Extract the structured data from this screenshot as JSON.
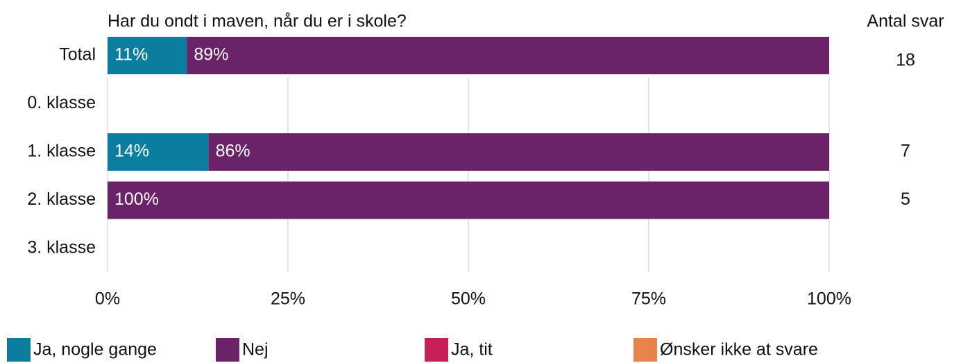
{
  "chart_data": {
    "type": "stacked-bar-horizontal",
    "title": "Har du ondt i maven, når du er i skole?",
    "categories": [
      "Total",
      "0. klasse",
      "1. klasse",
      "2. klasse",
      "3. klasse"
    ],
    "series": [
      {
        "name": "Ja, nogle gange",
        "color": "#0b7ea0",
        "values": [
          11,
          null,
          14,
          null,
          null
        ],
        "value_labels": [
          "11%",
          null,
          "14%",
          null,
          null
        ]
      },
      {
        "name": "Nej",
        "color": "#6a2268",
        "values": [
          89,
          null,
          86,
          100,
          null
        ],
        "value_labels": [
          "89%",
          null,
          "86%",
          "100%",
          null
        ]
      },
      {
        "name": "Ja, tit",
        "color": "#c81e5a",
        "values": [
          null,
          null,
          null,
          null,
          null
        ]
      },
      {
        "name": "Ønsker ikke at svare",
        "color": "#e8834a",
        "values": [
          null,
          null,
          null,
          null,
          null
        ]
      }
    ],
    "counts_title": "Antal svar",
    "counts": [
      18,
      null,
      7,
      5,
      null
    ],
    "xlim": [
      0,
      100
    ],
    "xticks": [
      {
        "value": 0,
        "label": "0%"
      },
      {
        "value": 25,
        "label": "25%"
      },
      {
        "value": 50,
        "label": "50%"
      },
      {
        "value": 75,
        "label": "75%"
      },
      {
        "value": 100,
        "label": "100%"
      }
    ],
    "grid": true
  }
}
